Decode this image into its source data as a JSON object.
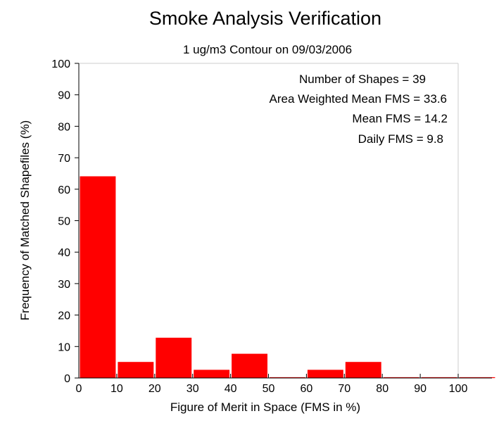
{
  "chart_data": {
    "type": "bar",
    "title": "Smoke Analysis Verification",
    "subtitle": "1 ug/m3 Contour on 09/03/2006",
    "xlabel": "Figure of Merit in Space (FMS in %)",
    "ylabel": "Frequency of Matched Shapefiles (%)",
    "xlim": [
      0,
      110
    ],
    "ylim": [
      0,
      100
    ],
    "xticks": [
      0,
      10,
      20,
      30,
      40,
      50,
      60,
      70,
      80,
      90,
      100
    ],
    "yticks": [
      0,
      10,
      20,
      30,
      40,
      50,
      60,
      70,
      80,
      90,
      100
    ],
    "bins": [
      {
        "start": 0,
        "end": 10,
        "value": 64.1
      },
      {
        "start": 10,
        "end": 20,
        "value": 5.1
      },
      {
        "start": 20,
        "end": 30,
        "value": 12.8
      },
      {
        "start": 30,
        "end": 40,
        "value": 2.6
      },
      {
        "start": 40,
        "end": 50,
        "value": 7.7
      },
      {
        "start": 50,
        "end": 60,
        "value": 0
      },
      {
        "start": 60,
        "end": 70,
        "value": 2.6
      },
      {
        "start": 70,
        "end": 80,
        "value": 5.1
      },
      {
        "start": 80,
        "end": 90,
        "value": 0
      },
      {
        "start": 90,
        "end": 100,
        "value": 0
      },
      {
        "start": 100,
        "end": 110,
        "value": 0
      }
    ],
    "bar_color": "#ff0000",
    "grid": false,
    "annotations": [
      "Number of Shapes = 39",
      "Area Weighted Mean FMS = 33.6",
      "Mean FMS = 14.2",
      "Daily FMS = 9.8"
    ]
  }
}
